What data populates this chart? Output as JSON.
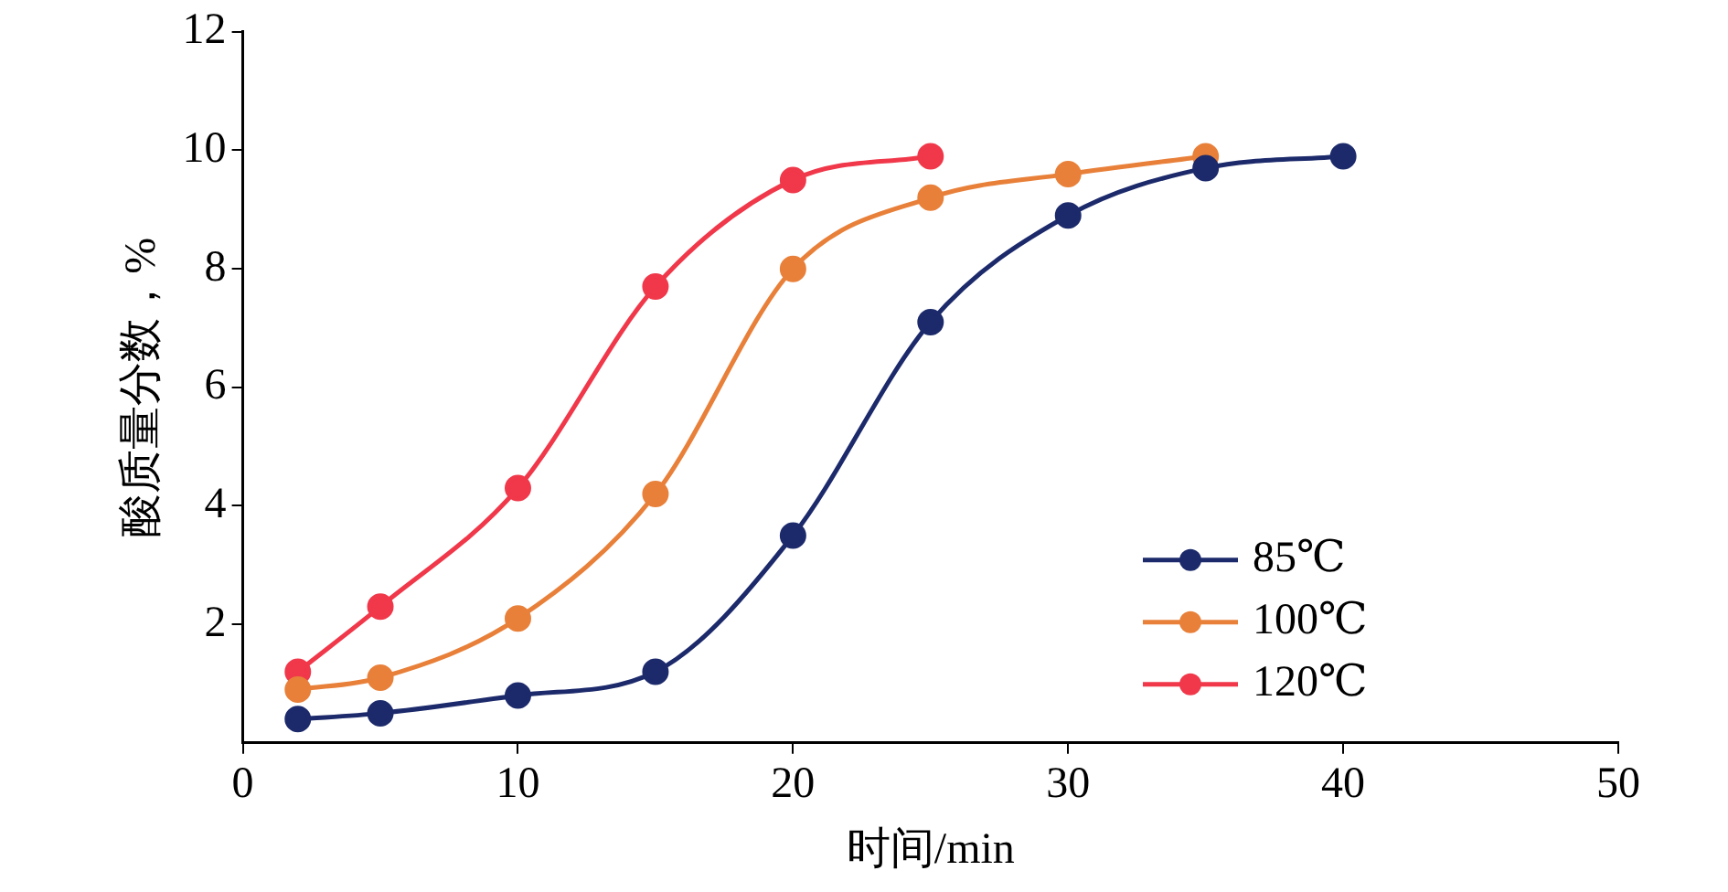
{
  "chart_data": {
    "type": "line",
    "xlabel": "时间/min",
    "ylabel": "酸质量分数，%",
    "xlim": [
      0,
      50
    ],
    "xticks": [
      0,
      10,
      20,
      30,
      40,
      50
    ],
    "ylim": [
      0,
      12
    ],
    "yticks": [
      2,
      4,
      6,
      8,
      10,
      12
    ],
    "grid": false,
    "legend": "bottom right",
    "marker": "circle",
    "line_style": "solid",
    "series": [
      {
        "name": "85℃",
        "color": "#1c2a6b",
        "x": [
          2,
          5,
          10,
          15,
          20,
          25,
          30,
          35,
          40
        ],
        "values": [
          0.4,
          0.5,
          0.8,
          1.2,
          3.5,
          7.1,
          8.9,
          9.7,
          9.9
        ]
      },
      {
        "name": "100℃",
        "color": "#e8803a",
        "x": [
          2,
          5,
          10,
          15,
          20,
          25,
          30,
          35
        ],
        "values": [
          0.9,
          1.1,
          2.1,
          4.2,
          8.0,
          9.2,
          9.6,
          9.9
        ]
      },
      {
        "name": "120℃",
        "color": "#f0384a",
        "x": [
          2,
          5,
          10,
          15,
          20,
          25
        ],
        "values": [
          1.2,
          2.3,
          4.3,
          7.7,
          9.5,
          9.9
        ]
      }
    ]
  }
}
